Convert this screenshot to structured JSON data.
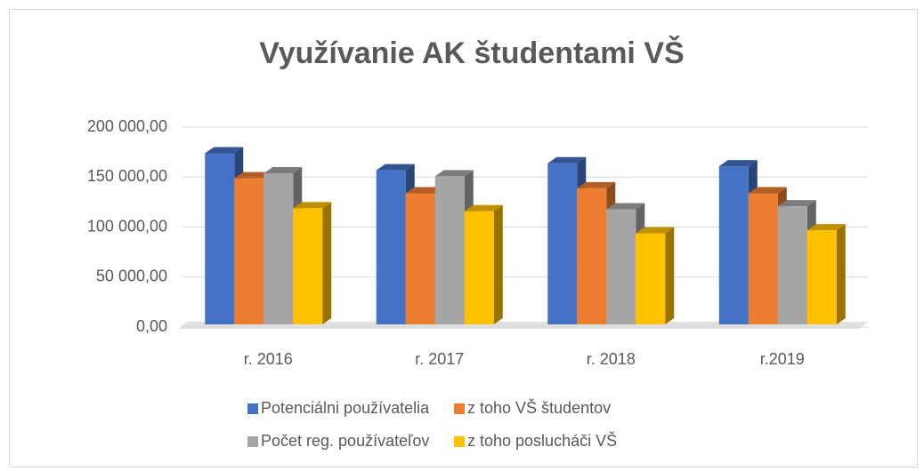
{
  "chart_data": {
    "type": "bar3d",
    "title": "Využívanie AK študentami VŠ",
    "categories": [
      "r. 2016",
      "r. 2017",
      "r. 2018",
      "r.2019"
    ],
    "series": [
      {
        "name": "Potenciálni používatelia",
        "color": "#4472c4",
        "values": [
          180000,
          163000,
          170000,
          167000
        ]
      },
      {
        "name": "z toho VŠ študentov",
        "color": "#ed7d31",
        "values": [
          155000,
          140000,
          145000,
          140000
        ]
      },
      {
        "name": "Počet reg. používateľov",
        "color": "#a5a5a5",
        "values": [
          160000,
          157000,
          124000,
          127000
        ]
      },
      {
        "name": "z toho poslucháči VŠ",
        "color": "#ffc000",
        "values": [
          125000,
          122000,
          100000,
          103000
        ]
      }
    ],
    "ylim": [
      0,
      200000
    ],
    "yticks": [
      {
        "value": 0,
        "label": "0,00"
      },
      {
        "value": 50000,
        "label": "50 000,00"
      },
      {
        "value": 100000,
        "label": "100 000,00"
      },
      {
        "value": 150000,
        "label": "150 000,00"
      },
      {
        "value": 200000,
        "label": "200 000,00"
      }
    ],
    "grid": true
  }
}
